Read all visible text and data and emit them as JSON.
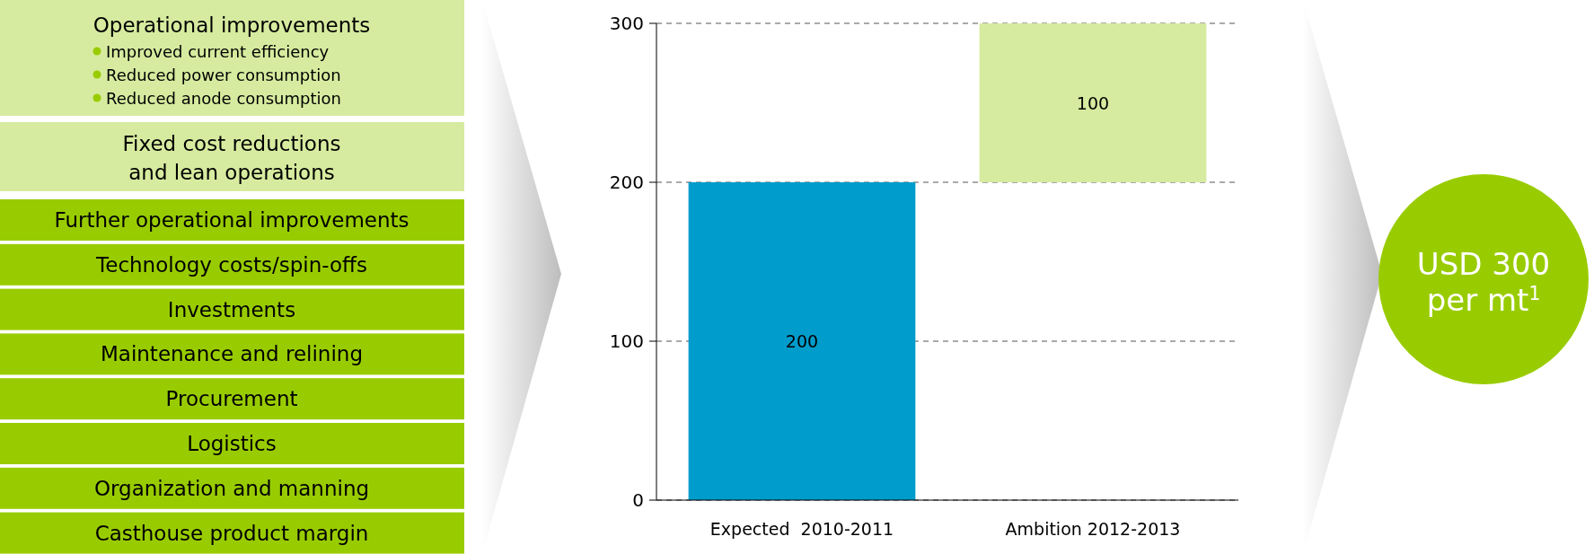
{
  "chart_data": {
    "type": "bar",
    "categories": [
      "Expected  2010-2011",
      "Ambition 2012-2013"
    ],
    "values": [
      200,
      100
    ],
    "base": [
      0,
      200
    ],
    "colors": [
      "#009ccc",
      "#d6eb9f"
    ],
    "ylim": [
      0,
      300
    ],
    "yticks": [
      0,
      100,
      200,
      300
    ],
    "grid": "y",
    "data_labels": true,
    "annotations": [
      "Operational improvements",
      "Improved current efficiency",
      "Reduced power consumption",
      "Reduced anode consumption",
      "Fixed cost reductions\nand lean operations",
      "Further operational improvements",
      "Technology costs/spin-offs",
      "Investments",
      "Maintenance and relining",
      "Procurement",
      "Logistics",
      "Organization and manning",
      "Casthouse product margin",
      "USD 300\nper mt$^{1}$"
    ]
  }
}
